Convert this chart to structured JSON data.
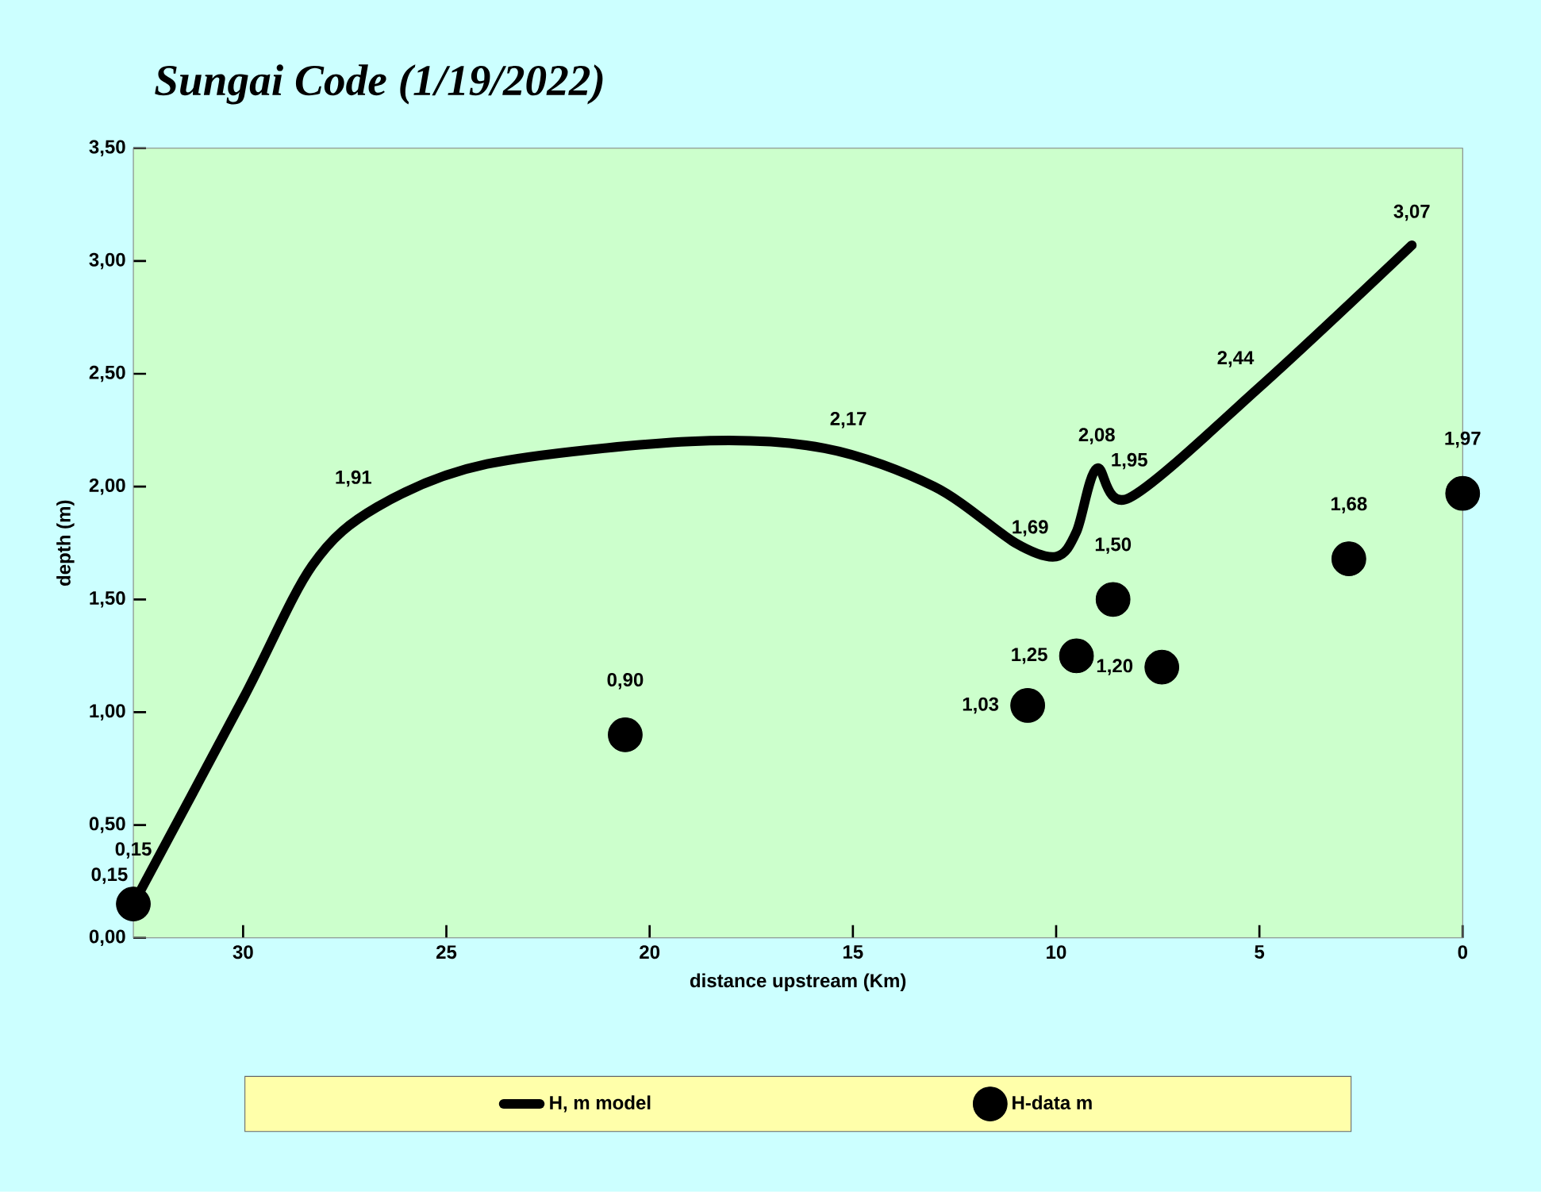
{
  "chart_data": {
    "type": "line",
    "title": "Sungai Code (1/19/2022)",
    "xlabel": "distance upstream (Km)",
    "ylabel": "depth (m)",
    "xlim": [
      32.7,
      0
    ],
    "xticks": [
      30,
      25,
      20,
      15,
      10,
      5,
      0
    ],
    "ylim": [
      0,
      3.5
    ],
    "yticks": [
      {
        "value": 0,
        "label": "0,00"
      },
      {
        "value": 0.5,
        "label": "0,50"
      },
      {
        "value": 1,
        "label": "1,00"
      },
      {
        "value": 1.5,
        "label": "1,50"
      },
      {
        "value": 2,
        "label": "2,00"
      },
      {
        "value": 2.5,
        "label": "2,50"
      },
      {
        "value": 3,
        "label": "3,00"
      },
      {
        "value": 3.5,
        "label": "3,50"
      }
    ],
    "grid": false,
    "legend": "bottom",
    "series": [
      {
        "name": "H, m model",
        "type": "line",
        "color": "#000000",
        "marker": "none",
        "line_style": "solid",
        "x": [
          32.7,
          30,
          28.3,
          26.7,
          24,
          19,
          15.7,
          13,
          11,
          10,
          9.5,
          9,
          8.2,
          5,
          1.25
        ],
        "values": [
          0.15,
          1.06,
          1.65,
          1.91,
          2.1,
          2.2,
          2.17,
          2.0,
          1.75,
          1.69,
          1.8,
          2.08,
          1.95,
          2.44,
          3.07
        ],
        "value_labels": [
          "0,15",
          null,
          null,
          "1,91",
          null,
          null,
          "2,17",
          null,
          null,
          "1,69",
          null,
          "2,08",
          "1,95",
          "2,44",
          "3,07"
        ]
      },
      {
        "name": "H-data m",
        "type": "scatter",
        "color": "#000000",
        "marker": "circle",
        "x": [
          32.7,
          20.6,
          10.7,
          9.5,
          8.6,
          7.4,
          2.8,
          0
        ],
        "values": [
          0.15,
          0.9,
          1.03,
          1.25,
          1.5,
          1.2,
          1.68,
          1.97
        ],
        "value_labels": [
          "0,15",
          "0,90",
          "1,03",
          "1,25",
          "1,50",
          "1,20",
          "1,68",
          "1,97"
        ]
      }
    ]
  }
}
